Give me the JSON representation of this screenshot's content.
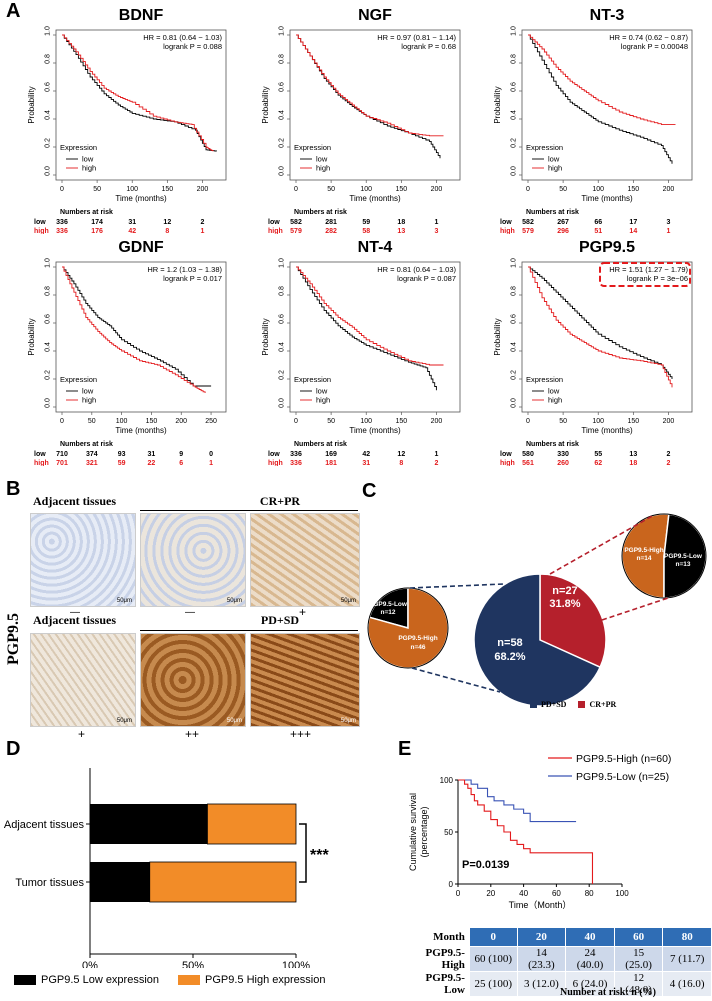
{
  "panel_labels": {
    "A": "A",
    "B": "B",
    "C": "C",
    "D": "D",
    "E": "E"
  },
  "colors": {
    "low": "#000000",
    "high": "#e31a1c",
    "navy": "#1f3560",
    "crimson": "#b5202c",
    "orange": "#c9651d",
    "bar_orange": "#f28c28",
    "blue_line": "#3a53b5"
  },
  "km_common": {
    "ylabel": "Probability",
    "xlabel": "Time (months)",
    "legend_title": "Expression",
    "legend_low": "low",
    "legend_high": "high",
    "risk_title": "Numbers at risk",
    "row_low": "low",
    "row_high": "high",
    "yticks": [
      "0.0",
      "0.2",
      "0.4",
      "0.6",
      "0.8",
      "1.0"
    ]
  },
  "km_plots": [
    {
      "title": "BDNF",
      "hr": "HR = 0.81 (0.64 − 1.03)",
      "p": "logrank P = 0.088",
      "xticks": [
        "0",
        "50",
        "100",
        "150",
        "200"
      ],
      "xmax": 225,
      "risk_low": [
        "336",
        "174",
        "31",
        "12",
        "2"
      ],
      "risk_high": [
        "336",
        "176",
        "42",
        "8",
        "1"
      ]
    },
    {
      "title": "NGF",
      "hr": "HR = 0.97 (0.81 − 1.14)",
      "p": "logrank P = 0.68",
      "xticks": [
        "0",
        "50",
        "100",
        "150",
        "200"
      ],
      "xmax": 225,
      "risk_low": [
        "582",
        "281",
        "59",
        "18",
        "1"
      ],
      "risk_high": [
        "579",
        "282",
        "58",
        "13",
        "3"
      ]
    },
    {
      "title": "NT-3",
      "hr": "HR = 0.74 (0.62 − 0.87)",
      "p": "logrank P = 0.00048",
      "xticks": [
        "0",
        "50",
        "100",
        "150",
        "200"
      ],
      "xmax": 225,
      "risk_low": [
        "582",
        "267",
        "66",
        "17",
        "3"
      ],
      "risk_high": [
        "579",
        "296",
        "51",
        "14",
        "1"
      ]
    },
    {
      "title": "GDNF",
      "hr": "HR = 1.2 (1.03 − 1.38)",
      "p": "logrank P = 0.017",
      "xticks": [
        "0",
        "50",
        "100",
        "150",
        "200",
        "250"
      ],
      "xmax": 265,
      "risk_low": [
        "710",
        "374",
        "93",
        "31",
        "9",
        "0"
      ],
      "risk_high": [
        "701",
        "321",
        "59",
        "22",
        "6",
        "1"
      ]
    },
    {
      "title": "NT-4",
      "hr": "HR = 0.81 (0.64 − 1.03)",
      "p": "logrank P = 0.087",
      "xticks": [
        "0",
        "50",
        "100",
        "150",
        "200"
      ],
      "xmax": 225,
      "risk_low": [
        "336",
        "169",
        "42",
        "12",
        "1"
      ],
      "risk_high": [
        "336",
        "181",
        "31",
        "8",
        "2"
      ]
    },
    {
      "title": "PGP9.5",
      "hr": "HR = 1.51 (1.27 − 1.79)",
      "p": "logrank P = 3e−06",
      "xticks": [
        "0",
        "50",
        "100",
        "150",
        "200"
      ],
      "xmax": 225,
      "risk_low": [
        "580",
        "330",
        "55",
        "13",
        "2"
      ],
      "risk_high": [
        "561",
        "260",
        "62",
        "18",
        "2"
      ]
    }
  ],
  "panel_b": {
    "side_label": "PGP9.5",
    "adjacent1": "Adjacent tissues",
    "crpr": "CR+PR",
    "adjacent2": "Adjacent tissues",
    "pdsd": "PD+SD",
    "scale": "50μm",
    "scores_top": [
      "—",
      "—",
      "+"
    ],
    "scores_bottom": [
      "+",
      "++",
      "+++"
    ]
  },
  "panel_c": {
    "big_pie": {
      "pdsd_n": "n=58",
      "pdsd_pct": "68.2%",
      "crpr_n": "n=27",
      "crpr_pct": "31.8%",
      "pdsd_value": 58,
      "crpr_value": 27
    },
    "left_pie": {
      "low_label": "PGP9.5-Low",
      "low_n": "n=12",
      "high_label": "PGP9.5-High",
      "high_n": "n=46",
      "low_value": 12,
      "high_value": 46
    },
    "right_pie": {
      "high_label": "PGP9.5-High",
      "high_n": "n=14",
      "low_label": "PGP9.5-Low",
      "low_n": "n=13",
      "high_value": 14,
      "low_value": 13
    },
    "legend_pdsd": "PD+SD",
    "legend_crpr": "CR+PR"
  },
  "panel_d": {
    "rows": [
      "Adjacent tissues",
      "Tumor tissues"
    ],
    "low_frac": [
      0.57,
      0.29
    ],
    "xticks": [
      "0%",
      "50%",
      "100%"
    ],
    "sig": "***",
    "legend_low": "PGP9.5 Low expression",
    "legend_high": "PGP9.5 High expression"
  },
  "panel_e": {
    "legend_high": "PGP9.5-High (n=60)",
    "legend_low": "PGP9.5-Low  (n=25)",
    "ylabel1": "Cumulative survival",
    "ylabel2": "(percentage)",
    "xlabel": "Time（Month）",
    "p": "P=0.0139",
    "yticks": [
      "0",
      "50",
      "100"
    ],
    "xticks": [
      "0",
      "20",
      "40",
      "60",
      "80",
      "100"
    ],
    "table_header": [
      "Month",
      "0",
      "20",
      "40",
      "60",
      "80"
    ],
    "table_high": [
      "PGP9.5-High",
      "60 (100)",
      "14 (23.3)",
      "24 (40.0)",
      "15 (25.0)",
      "7 (11.7)"
    ],
    "table_low": [
      "PGP9.5-Low",
      "25 (100)",
      "3 (12.0)",
      "6 (24.0)",
      "12 (48.0)",
      "4 (16.0)"
    ],
    "footnote": "Number at risk: n (%)"
  }
}
